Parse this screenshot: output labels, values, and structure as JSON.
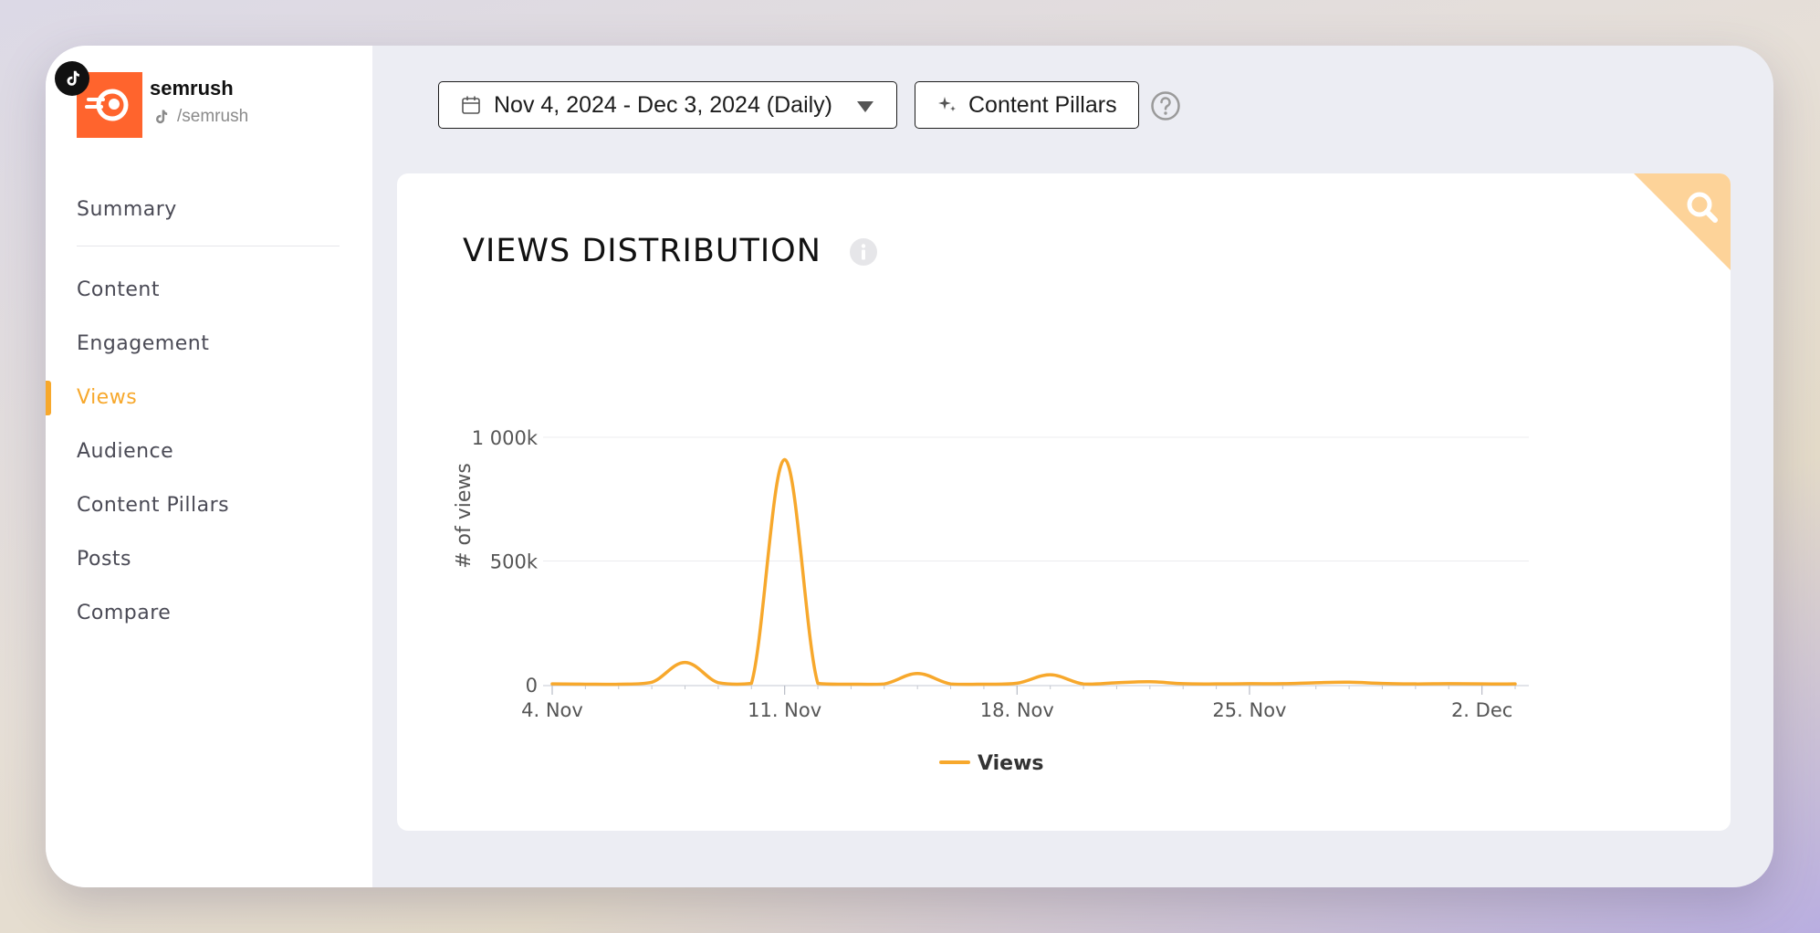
{
  "app": {
    "brand_name": "semrush",
    "handle": "/semrush",
    "accent_color": "#f7a82c",
    "brand_color": "#ff642d"
  },
  "sidebar": {
    "items": [
      {
        "label": "Summary",
        "active": false
      },
      {
        "label": "Content",
        "active": false
      },
      {
        "label": "Engagement",
        "active": false
      },
      {
        "label": "Views",
        "active": true
      },
      {
        "label": "Audience",
        "active": false
      },
      {
        "label": "Content Pillars",
        "active": false
      },
      {
        "label": "Posts",
        "active": false
      },
      {
        "label": "Compare",
        "active": false
      }
    ]
  },
  "toolbar": {
    "date_range_label": "Nov 4, 2024 - Dec 3, 2024 (Daily)",
    "content_pillars_label": "Content Pillars"
  },
  "card": {
    "title": "VIEWS DISTRIBUTION"
  },
  "chart_data": {
    "type": "line",
    "title": "VIEWS DISTRIBUTION",
    "ylabel": "# of views",
    "xlabel": "",
    "ylim": [
      0,
      1000000
    ],
    "yticks": [
      {
        "value": 0,
        "label": "0"
      },
      {
        "value": 500000,
        "label": "500k"
      },
      {
        "value": 1000000,
        "label": "1 000k"
      }
    ],
    "xticks": [
      {
        "day": 0,
        "label": "4. Nov"
      },
      {
        "day": 7,
        "label": "11. Nov"
      },
      {
        "day": 14,
        "label": "18. Nov"
      },
      {
        "day": 21,
        "label": "25. Nov"
      },
      {
        "day": 28,
        "label": "2. Dec"
      }
    ],
    "x": [
      "2024-11-04",
      "2024-11-05",
      "2024-11-06",
      "2024-11-07",
      "2024-11-08",
      "2024-11-09",
      "2024-11-10",
      "2024-11-11",
      "2024-11-12",
      "2024-11-13",
      "2024-11-14",
      "2024-11-15",
      "2024-11-16",
      "2024-11-17",
      "2024-11-18",
      "2024-11-19",
      "2024-11-20",
      "2024-11-21",
      "2024-11-22",
      "2024-11-23",
      "2024-11-24",
      "2024-11-25",
      "2024-11-26",
      "2024-11-27",
      "2024-11-28",
      "2024-11-29",
      "2024-11-30",
      "2024-12-01",
      "2024-12-02",
      "2024-12-03"
    ],
    "series": [
      {
        "name": "Views",
        "color": "#f7a82c",
        "values": [
          3000,
          2000,
          2000,
          10000,
          90000,
          8000,
          5000,
          910000,
          5000,
          2000,
          3000,
          45000,
          3000,
          2000,
          6000,
          40000,
          3000,
          8000,
          12000,
          4000,
          3000,
          4000,
          4000,
          8000,
          10000,
          5000,
          3000,
          4000,
          3000,
          3000
        ]
      }
    ],
    "legend": "bottom-center",
    "grid": true
  }
}
